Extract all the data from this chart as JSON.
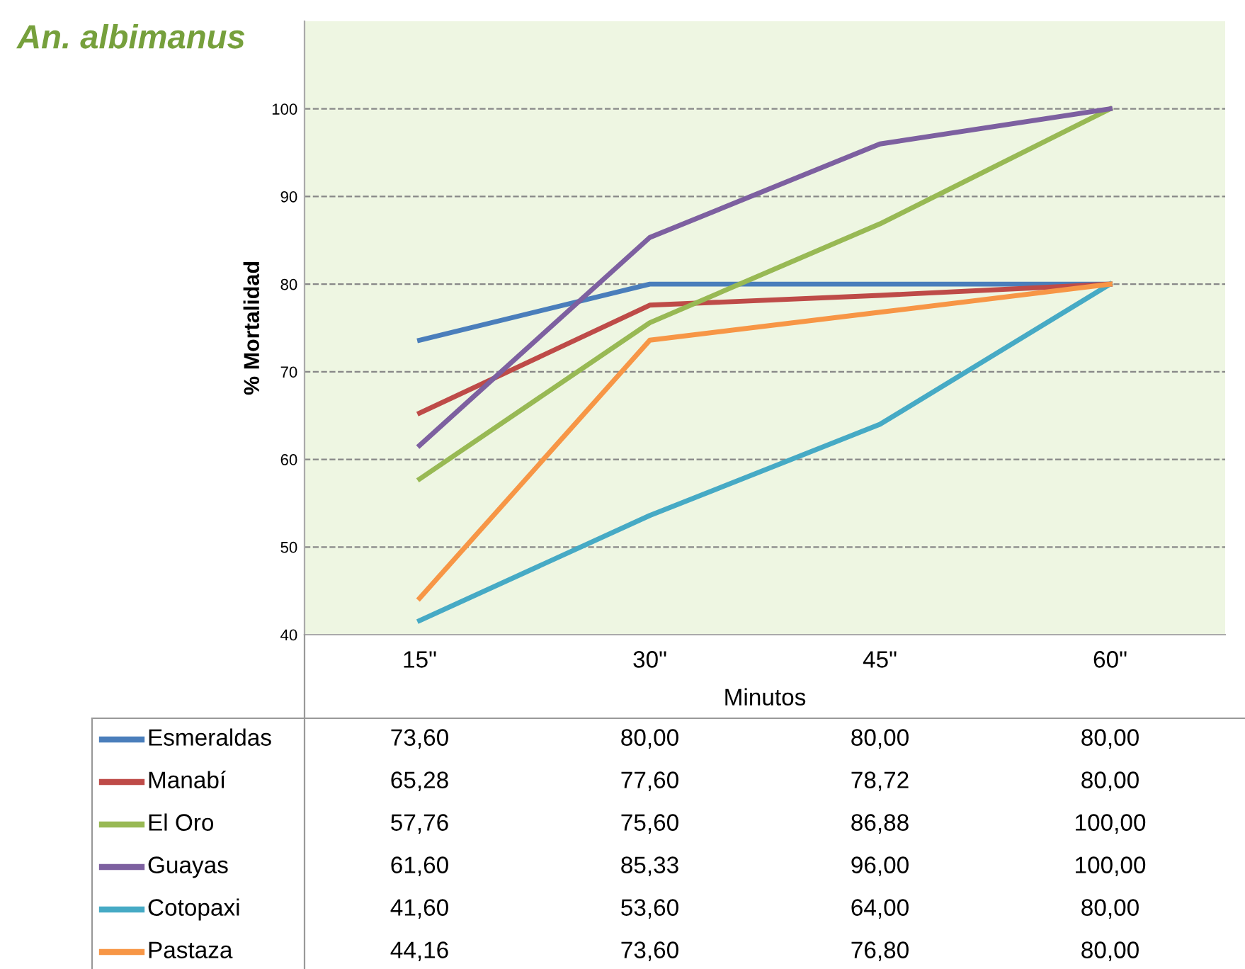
{
  "chart_data": {
    "type": "line",
    "title": "An. albimanus",
    "xlabel": "Minutos",
    "ylabel": "% Mortalidad",
    "categories": [
      "15\"",
      "30\"",
      "45\"",
      "60\""
    ],
    "ylim": [
      40,
      110
    ],
    "yticks": [
      40,
      50,
      60,
      70,
      80,
      90,
      100
    ],
    "grid": "y",
    "legend": "bottom",
    "marker": "none",
    "line_style": "solid",
    "series": [
      {
        "name": "Esmeraldas",
        "color": "#4a7ebb",
        "values": [
          73.6,
          80.0,
          80.0,
          80.0
        ],
        "value_labels": [
          "73,60",
          "80,00",
          "80,00",
          "80,00"
        ]
      },
      {
        "name": "Manabí",
        "color": "#be4b48",
        "values": [
          65.28,
          77.6,
          78.72,
          80.0
        ],
        "value_labels": [
          "65,28",
          "77,60",
          "78,72",
          "80,00"
        ]
      },
      {
        "name": "El Oro",
        "color": "#98b954",
        "values": [
          57.76,
          75.6,
          86.88,
          100.0
        ],
        "value_labels": [
          "57,76",
          "75,60",
          "86,88",
          "100,00"
        ]
      },
      {
        "name": "Guayas",
        "color": "#7d60a0",
        "values": [
          61.6,
          85.33,
          96.0,
          100.0
        ],
        "value_labels": [
          "61,60",
          "85,33",
          "96,00",
          "100,00"
        ]
      },
      {
        "name": "Cotopaxi",
        "color": "#46aac5",
        "values": [
          41.6,
          53.6,
          64.0,
          80.0
        ],
        "value_labels": [
          "41,60",
          "53,60",
          "64,00",
          "80,00"
        ]
      },
      {
        "name": "Pastaza",
        "color": "#f79646",
        "values": [
          44.16,
          73.6,
          76.8,
          80.0
        ],
        "value_labels": [
          "44,16",
          "73,60",
          "76,80",
          "80,00"
        ]
      }
    ]
  }
}
